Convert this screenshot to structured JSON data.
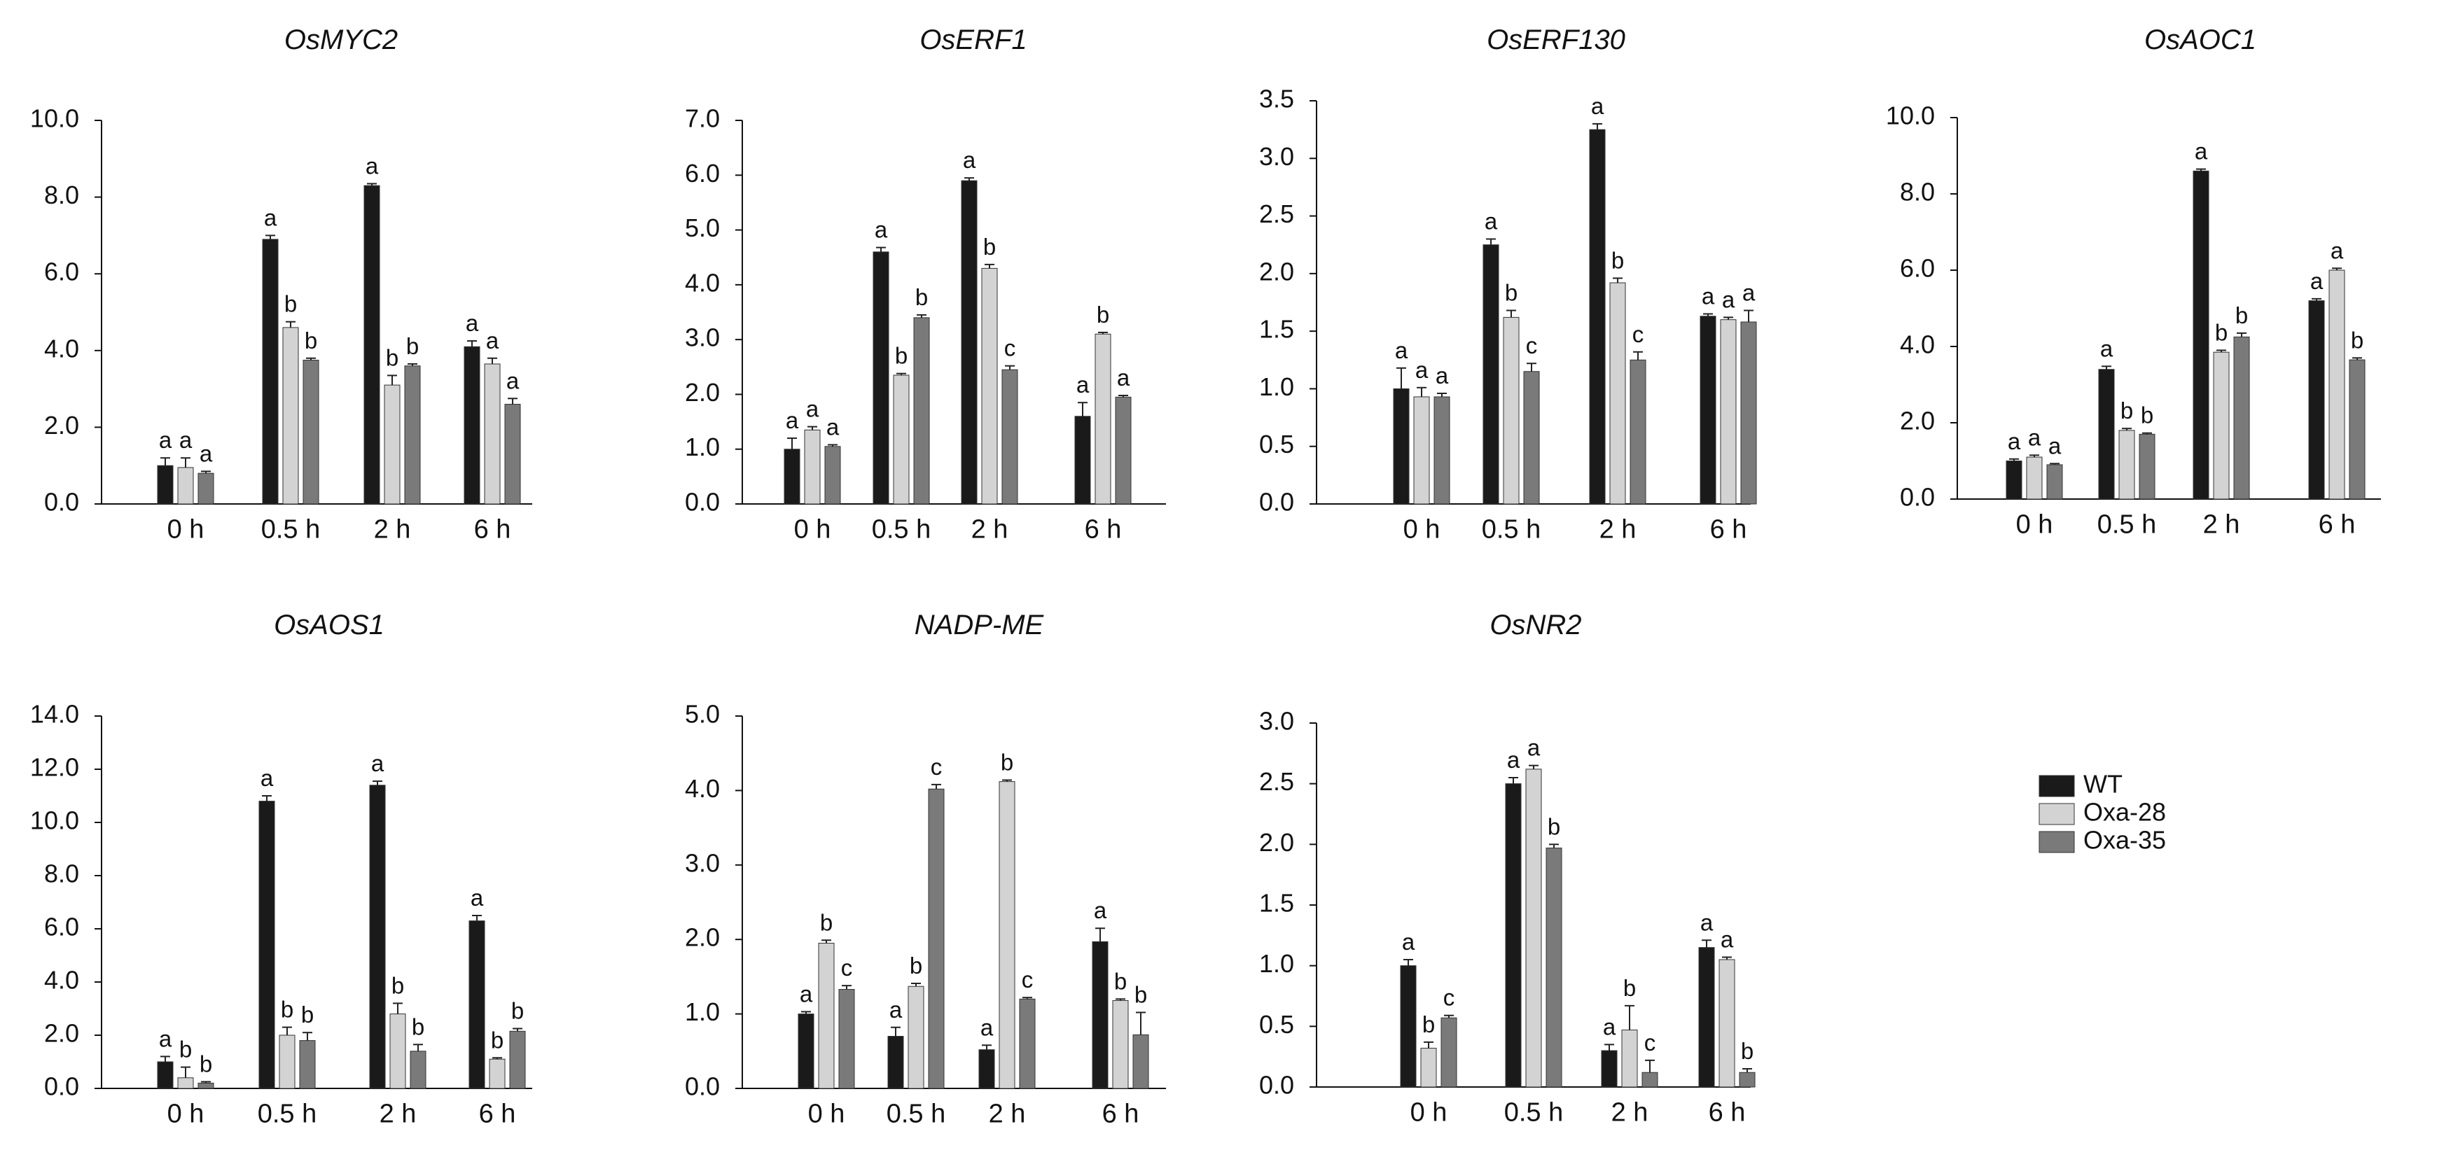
{
  "figure": {
    "series_colors": {
      "WT": "#1a1a1a",
      "Oxa-28": "#d3d3d3",
      "Oxa-35": "#7a7a7a"
    },
    "legend": [
      "WT",
      "Oxa-28",
      "Oxa-35"
    ]
  },
  "chart_data": [
    {
      "type": "bar",
      "title": "OsMYC2",
      "categories": [
        "0 h",
        "0.5  h",
        "2 h",
        "6  h"
      ],
      "ylim": [
        0,
        10
      ],
      "yticks": [
        "0.0",
        "2.0",
        "4.0",
        "6.0",
        "8.0",
        "10.0"
      ],
      "series": [
        {
          "name": "WT",
          "values": [
            1.0,
            6.9,
            8.3,
            4.1
          ],
          "errors": [
            0.2,
            0.1,
            0.05,
            0.15
          ],
          "letters": [
            "a",
            "a",
            "a",
            "a"
          ]
        },
        {
          "name": "Oxa-28",
          "values": [
            0.95,
            4.6,
            3.1,
            3.65
          ],
          "errors": [
            0.25,
            0.15,
            0.25,
            0.15
          ],
          "letters": [
            "a",
            "b",
            "b",
            "a"
          ]
        },
        {
          "name": "Oxa-35",
          "values": [
            0.8,
            3.75,
            3.6,
            2.6
          ],
          "errors": [
            0.05,
            0.05,
            0.05,
            0.15
          ],
          "letters": [
            "a",
            "b",
            "b",
            "a"
          ]
        }
      ]
    },
    {
      "type": "bar",
      "title": "OsERF1",
      "categories": [
        "0 h",
        "0.5 h",
        "2 h",
        "6 h"
      ],
      "ylim": [
        0,
        7
      ],
      "yticks": [
        "0.0",
        "1.0",
        "2.0",
        "3.0",
        "4.0",
        "5.0",
        "6.0",
        "7.0"
      ],
      "series": [
        {
          "name": "WT",
          "values": [
            1.0,
            4.6,
            5.9,
            1.6
          ],
          "errors": [
            0.2,
            0.08,
            0.05,
            0.25
          ],
          "letters": [
            "a",
            "a",
            "a",
            "a"
          ]
        },
        {
          "name": "Oxa-28",
          "values": [
            1.35,
            2.35,
            4.3,
            3.1
          ],
          "errors": [
            0.06,
            0.03,
            0.07,
            0.03
          ],
          "letters": [
            "a",
            "b",
            "b",
            "b"
          ]
        },
        {
          "name": "Oxa-35",
          "values": [
            1.05,
            3.4,
            2.45,
            1.95
          ],
          "errors": [
            0.03,
            0.05,
            0.07,
            0.03
          ],
          "letters": [
            "a",
            "b",
            "c",
            "a"
          ]
        }
      ]
    },
    {
      "type": "bar",
      "title": "OsERF130",
      "categories": [
        "0 h",
        "0.5 h",
        "2 h",
        "6 h"
      ],
      "ylim": [
        0,
        3.5
      ],
      "yticks": [
        "0.0",
        "0.5",
        "1.0",
        "1.5",
        "2.0",
        "2.5",
        "3.0",
        "3.5"
      ],
      "series": [
        {
          "name": "WT",
          "values": [
            1.0,
            2.25,
            3.25,
            1.63
          ],
          "errors": [
            0.18,
            0.05,
            0.05,
            0.02
          ],
          "letters": [
            "a",
            "a",
            "a",
            "a"
          ]
        },
        {
          "name": "Oxa-28",
          "values": [
            0.93,
            1.62,
            1.92,
            1.6
          ],
          "errors": [
            0.08,
            0.06,
            0.04,
            0.02
          ],
          "letters": [
            "a",
            "b",
            "b",
            "a"
          ]
        },
        {
          "name": "Oxa-35",
          "values": [
            0.93,
            1.15,
            1.25,
            1.58
          ],
          "errors": [
            0.03,
            0.07,
            0.07,
            0.1
          ],
          "letters": [
            "a",
            "c",
            "c",
            "a"
          ]
        }
      ]
    },
    {
      "type": "bar",
      "title": "OsAOC1",
      "categories": [
        "0 h",
        "0.5 h",
        "2 h",
        "6 h"
      ],
      "ylim": [
        0,
        10
      ],
      "yticks": [
        "0.0",
        "2.0",
        "4.0",
        "6.0",
        "8.0",
        "10.0"
      ],
      "series": [
        {
          "name": "WT",
          "values": [
            1.0,
            3.4,
            8.6,
            5.2
          ],
          "errors": [
            0.05,
            0.08,
            0.05,
            0.05
          ],
          "letters": [
            "a",
            "a",
            "a",
            "a"
          ]
        },
        {
          "name": "Oxa-28",
          "values": [
            1.1,
            1.8,
            3.85,
            6.0
          ],
          "errors": [
            0.05,
            0.05,
            0.05,
            0.05
          ],
          "letters": [
            "a",
            "b",
            "b",
            "a"
          ]
        },
        {
          "name": "Oxa-35",
          "values": [
            0.9,
            1.7,
            4.25,
            3.65
          ],
          "errors": [
            0.03,
            0.03,
            0.1,
            0.05
          ],
          "letters": [
            "a",
            "b",
            "b",
            "b"
          ]
        }
      ]
    },
    {
      "type": "bar",
      "title": "OsAOS1",
      "categories": [
        "0 h",
        "0.5 h",
        "2 h",
        "6 h"
      ],
      "ylim": [
        0,
        14
      ],
      "yticks": [
        "0.0",
        "2.0",
        "4.0",
        "6.0",
        "8.0",
        "10.0",
        "12.0",
        "14.0"
      ],
      "series": [
        {
          "name": "WT",
          "values": [
            1.0,
            10.8,
            11.4,
            6.3
          ],
          "errors": [
            0.2,
            0.2,
            0.15,
            0.2
          ],
          "letters": [
            "a",
            "a",
            "a",
            "a"
          ]
        },
        {
          "name": "Oxa-28",
          "values": [
            0.4,
            2.0,
            2.8,
            1.1
          ],
          "errors": [
            0.4,
            0.3,
            0.4,
            0.05
          ],
          "letters": [
            "b",
            "b",
            "b",
            "b"
          ]
        },
        {
          "name": "Oxa-35",
          "values": [
            0.2,
            1.8,
            1.4,
            2.15
          ],
          "errors": [
            0.05,
            0.3,
            0.25,
            0.1
          ],
          "letters": [
            "b",
            "b",
            "b",
            "b"
          ]
        }
      ]
    },
    {
      "type": "bar",
      "title": "NADP-ME",
      "categories": [
        "0 h",
        "0.5 h",
        "2 h",
        "6 h"
      ],
      "ylim": [
        0,
        5
      ],
      "yticks": [
        "0.0",
        "1.0",
        "2.0",
        "3.0",
        "4.0",
        "5.0"
      ],
      "series": [
        {
          "name": "WT",
          "values": [
            1.0,
            0.7,
            0.52,
            1.97
          ],
          "errors": [
            0.03,
            0.12,
            0.06,
            0.18
          ],
          "letters": [
            "a",
            "a",
            "a",
            "a"
          ]
        },
        {
          "name": "Oxa-28",
          "values": [
            1.95,
            1.37,
            4.12,
            1.18
          ],
          "errors": [
            0.04,
            0.04,
            0.02,
            0.02
          ],
          "letters": [
            "b",
            "b",
            "b",
            "b"
          ]
        },
        {
          "name": "Oxa-35",
          "values": [
            1.33,
            4.02,
            1.2,
            0.72
          ],
          "errors": [
            0.05,
            0.06,
            0.02,
            0.3
          ],
          "letters": [
            "c",
            "c",
            "c",
            "b"
          ]
        }
      ]
    },
    {
      "type": "bar",
      "title": "OsNR2",
      "categories": [
        "0 h",
        "0.5 h",
        "2 h",
        "6 h"
      ],
      "ylim": [
        0,
        3
      ],
      "yticks": [
        "0.0",
        "0.5",
        "1.0",
        "1.5",
        "2.0",
        "2.5",
        "3.0"
      ],
      "series": [
        {
          "name": "WT",
          "values": [
            1.0,
            2.5,
            0.3,
            1.15
          ],
          "errors": [
            0.05,
            0.05,
            0.05,
            0.06
          ],
          "letters": [
            "a",
            "a",
            "a",
            "a"
          ]
        },
        {
          "name": "Oxa-28",
          "values": [
            0.32,
            2.62,
            0.47,
            1.05
          ],
          "errors": [
            0.05,
            0.03,
            0.2,
            0.02
          ],
          "letters": [
            "b",
            "a",
            "b",
            "a"
          ]
        },
        {
          "name": "Oxa-35",
          "values": [
            0.57,
            1.97,
            0.12,
            0.12
          ],
          "errors": [
            0.02,
            0.03,
            0.1,
            0.03
          ],
          "letters": [
            "c",
            "b",
            "c",
            "b"
          ]
        }
      ]
    }
  ]
}
